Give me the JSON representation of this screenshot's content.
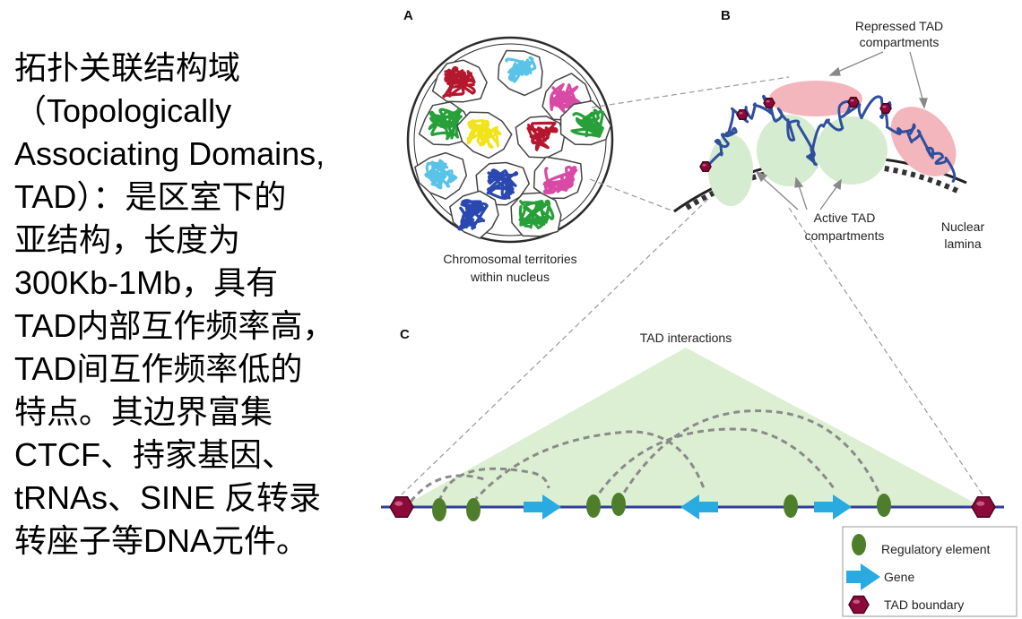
{
  "left_text": [
    "拓扑关联结构域",
    "（Topologically",
    "Associating Domains,",
    "TAD）：是区室下的",
    "亚结构，长度为",
    "300Kb-1Mb，具有",
    "TAD内部互作频率高，",
    "TAD间互作频率低的",
    "特点。其边界富集",
    "CTCF、持家基因、",
    "tRNAs、SINE 反转录",
    "转座子等DNA元件。"
  ],
  "panel_a": {
    "letter": "A",
    "caption_line1": "Chromosomal territories",
    "caption_line2": "within nucleus",
    "territory_colors": [
      "#b5172e",
      "#59c3e8",
      "#d94aa6",
      "#27a03a",
      "#f2e41c",
      "#b5172e",
      "#27a03a",
      "#59c3e8",
      "#2a48b0",
      "#d94aa6",
      "#2a48b0",
      "#27a03a"
    ]
  },
  "panel_b": {
    "letter": "B",
    "repressed_label_line1": "Repressed TAD",
    "repressed_label_line2": "compartments",
    "active_label_line1": "Active TAD",
    "active_label_line2": "compartments",
    "lamina_label_line1": "Nuclear",
    "lamina_label_line2": "lamina"
  },
  "panel_c": {
    "letter": "C",
    "interactions_label": "TAD interactions"
  },
  "legend": {
    "regulatory": "Regulatory element",
    "gene": "Gene",
    "boundary": "TAD boundary"
  },
  "colors": {
    "tad_boundary": "#8b0a3a",
    "regulatory_element": "#4e7d2c",
    "gene_arrow": "#29abe2",
    "dna_line": "#2f3e9e",
    "tad_triangle": "#dcefd2",
    "repressed": "#f4b6bd",
    "active": "#d6ecd0"
  }
}
